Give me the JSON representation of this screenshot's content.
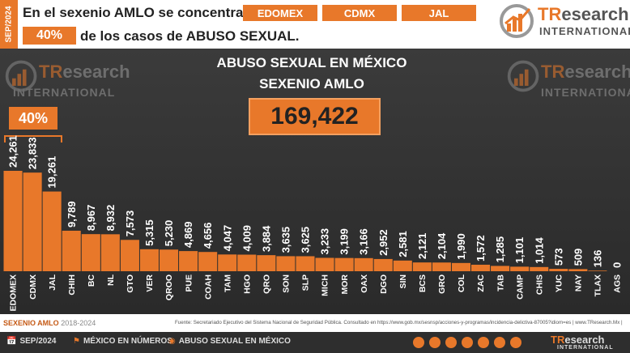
{
  "header": {
    "date_tag": "SEP/2024",
    "line1": "En el sexenio AMLO se concentran en",
    "states": [
      "EDOMEX",
      "CDMX",
      "JAL"
    ],
    "percent": "40%",
    "line2": "de los casos de ABUSO SEXUAL."
  },
  "brand": {
    "tr": "TR",
    "esearch": "esearch",
    "international": "INTERNATIONAL"
  },
  "panel": {
    "title": "ABUSO SEXUAL EN MÉXICO",
    "subtitle": "SEXENIO AMLO",
    "total": "169,422",
    "bracket_label": "40%"
  },
  "chart_data": {
    "type": "bar",
    "categories": [
      "EDOMEX",
      "CDMX",
      "JAL",
      "CHIH",
      "BC",
      "NL",
      "GTO",
      "VER",
      "QROO",
      "PUE",
      "COAH",
      "TAM",
      "HGO",
      "QRO",
      "SON",
      "SLP",
      "MICH",
      "MOR",
      "OAX",
      "DGO",
      "SIN",
      "BCS",
      "GRO",
      "COL",
      "ZAC",
      "TAB",
      "CAMP",
      "CHIS",
      "YUC",
      "NAY",
      "TLAX",
      "AGS"
    ],
    "values": [
      24261,
      23833,
      19261,
      9789,
      8967,
      8932,
      7573,
      5315,
      5230,
      4869,
      4656,
      4047,
      4009,
      3884,
      3635,
      3625,
      3233,
      3199,
      3166,
      2952,
      2581,
      2121,
      2104,
      1990,
      1572,
      1285,
      1101,
      1014,
      573,
      509,
      136,
      0
    ],
    "labels": [
      "24,261",
      "23,833",
      "19,261",
      "9,789",
      "8,967",
      "8,932",
      "7,573",
      "5,315",
      "5,230",
      "4,869",
      "4,656",
      "4,047",
      "4,009",
      "3,884",
      "3,635",
      "3,625",
      "3,233",
      "3,199",
      "3,166",
      "2,952",
      "2,581",
      "2,121",
      "2,104",
      "1,990",
      "1,572",
      "1,285",
      "1,101",
      "1,014",
      "573",
      "509",
      "136",
      "0"
    ],
    "ylim": [
      0,
      24261
    ],
    "colors": {
      "bar": "#e8782a",
      "label": "#ffffff"
    }
  },
  "footer": {
    "period_label": "SEXENIO AMLO",
    "period_years": "2018-2024",
    "source": "Fuente: Secretariado Ejecutivo del Sistema Nacional de Seguridad Pública. Consultado en https://www.gob.mx/sesnsp/acciones-y-programas/incidencia-delictiva-87005?idiom=es | www.TResearch.Mx |",
    "date": "SEP/2024",
    "section1": "MÉXICO EN NÚMEROS",
    "section2": "ABUSO SEXUAL EN MÉXICO"
  }
}
